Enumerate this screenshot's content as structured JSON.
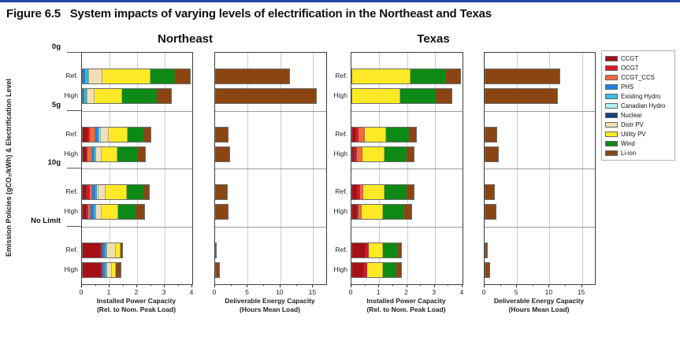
{
  "page": {
    "title": "Figure 6.5   System impacts of varying levels of electrification in the Northeast and Texas",
    "accent_rule_color": "#2646A8"
  },
  "figure": {
    "region_titles": [
      "Northeast",
      "Texas"
    ],
    "y_axis_label": "Emission Policies (gCO₂/kWh) & Electrification Level"
  },
  "legend": {
    "items": [
      "CCGT",
      "OCGT",
      "CCGT_CCS",
      "PHS",
      "Existing Hydro",
      "Canadian Hydro",
      "Nuclear",
      "Distr PV",
      "Utility PV",
      "Wind",
      "Li-ion"
    ]
  },
  "chart_data": {
    "type": "bar",
    "orientation": "horizontal-stacked",
    "grid": true,
    "legend_position": "upper-right-outside",
    "groups": [
      "0g",
      "5g",
      "10g",
      "No Limit"
    ],
    "rows": [
      "Ref.",
      "High"
    ],
    "stack_order": [
      "CCGT",
      "OCGT",
      "CCGT_CCS",
      "PHS",
      "Existing Hydro",
      "Canadian Hydro",
      "Nuclear",
      "Distr PV",
      "Utility PV",
      "Wind",
      "Li-ion"
    ],
    "colors": {
      "CCGT": "#A50F15",
      "OCGT": "#DC1428",
      "CCGT_CCS": "#F4683C",
      "PHS": "#2081E2",
      "Existing Hydro": "#33BEEB",
      "Canadian Hydro": "#ADF3F1",
      "Nuclear": "#14407D",
      "Distr PV": "#F2DEB2",
      "Utility PV": "#FFE926",
      "Wind": "#0C8A15",
      "Li-ion": "#8B4513"
    },
    "panels": [
      {
        "region": "Northeast",
        "xlabel": [
          "Installed Power Capacity",
          "(Rel. to Nom. Peak Load)"
        ],
        "xmax": 4,
        "xticks": [
          0,
          1,
          2,
          3,
          4
        ],
        "minor_step": 0.5,
        "show_row_labels": true,
        "bars": [
          [
            {
              "PHS": 0.1,
              "Existing Hydro": 0.1,
              "Canadian Hydro": 0.04,
              "Distr PV": 0.5,
              "Utility PV": 1.75,
              "Wind": 0.9,
              "Li-ion": 0.55
            },
            {
              "PHS": 0.07,
              "Existing Hydro": 0.08,
              "Canadian Hydro": 0.03,
              "Distr PV": 0.27,
              "Utility PV": 1.0,
              "Wind": 1.28,
              "Li-ion": 0.52
            }
          ],
          [
            {
              "CCGT": 0.2,
              "OCGT": 0.05,
              "CCGT_CCS": 0.22,
              "PHS": 0.08,
              "Existing Hydro": 0.07,
              "Canadian Hydro": 0.04,
              "Distr PV": 0.3,
              "Utility PV": 0.7,
              "Wind": 0.62,
              "Li-ion": 0.24
            },
            {
              "CCGT": 0.14,
              "OCGT": 0.05,
              "CCGT_CCS": 0.16,
              "PHS": 0.07,
              "Existing Hydro": 0.06,
              "Canadian Hydro": 0.03,
              "Distr PV": 0.18,
              "Utility PV": 0.6,
              "Wind": 0.75,
              "Li-ion": 0.28
            }
          ],
          [
            {
              "CCGT": 0.16,
              "OCGT": 0.1,
              "CCGT_CCS": 0.1,
              "PHS": 0.1,
              "Existing Hydro": 0.08,
              "Canadian Hydro": 0.04,
              "Distr PV": 0.28,
              "Utility PV": 0.78,
              "Wind": 0.64,
              "Li-ion": 0.18
            },
            {
              "CCGT": 0.14,
              "OCGT": 0.08,
              "CCGT_CCS": 0.08,
              "PHS": 0.1,
              "Existing Hydro": 0.08,
              "Canadian Hydro": 0.03,
              "Distr PV": 0.2,
              "Utility PV": 0.62,
              "Wind": 0.67,
              "Li-ion": 0.28
            }
          ],
          [
            {
              "CCGT": 0.67,
              "OCGT": 0.07,
              "PHS": 0.09,
              "Existing Hydro": 0.07,
              "Canadian Hydro": 0.03,
              "Distr PV": 0.31,
              "Utility PV": 0.19,
              "Li-ion": 0.05
            },
            {
              "CCGT": 0.71,
              "OCGT": 0.05,
              "PHS": 0.07,
              "Existing Hydro": 0.06,
              "Canadian Hydro": 0.02,
              "Distr PV": 0.2,
              "Utility PV": 0.13,
              "Li-ion": 0.19
            }
          ]
        ]
      },
      {
        "region": "Northeast",
        "xlabel": [
          "Deliverable Energy Capacity",
          "(Hours Mean Load)"
        ],
        "xmax": 17,
        "xticks": [
          0,
          5,
          10,
          15
        ],
        "minor_step": 2.5,
        "show_row_labels": false,
        "bars": [
          [
            {
              "Li-ion": 11.5
            },
            {
              "Li-ion": 15.5
            }
          ],
          [
            {
              "Li-ion": 2.1
            },
            {
              "Li-ion": 2.3
            }
          ],
          [
            {
              "Li-ion": 1.9
            },
            {
              "Li-ion": 2.1
            }
          ],
          [
            {
              "Li-ion": 0.15
            },
            {
              "Li-ion": 0.7
            }
          ]
        ]
      },
      {
        "region": "Texas",
        "xlabel": [
          "Installed Power Capacity",
          "(Rel. to Nom. Peak Load)"
        ],
        "xmax": 4,
        "xticks": [
          0,
          1,
          2,
          3,
          4
        ],
        "minor_step": 0.5,
        "show_row_labels": true,
        "bars": [
          [
            {
              "Utility PV": 2.14,
              "Wind": 1.29,
              "Li-ion": 0.52
            },
            {
              "Utility PV": 1.76,
              "Wind": 1.29,
              "Li-ion": 0.57
            }
          ],
          [
            {
              "CCGT": 0.14,
              "OCGT": 0.1,
              "CCGT_CCS": 0.22,
              "Utility PV": 0.78,
              "Wind": 0.84,
              "Li-ion": 0.28
            },
            {
              "CCGT": 0.1,
              "OCGT": 0.08,
              "CCGT_CCS": 0.21,
              "Utility PV": 0.81,
              "Wind": 0.81,
              "Li-ion": 0.27
            }
          ],
          [
            {
              "CCGT": 0.19,
              "OCGT": 0.1,
              "CCGT_CCS": 0.11,
              "Utility PV": 0.79,
              "Wind": 0.81,
              "Li-ion": 0.27
            },
            {
              "CCGT": 0.17,
              "OCGT": 0.07,
              "CCGT_CCS": 0.12,
              "Utility PV": 0.78,
              "Wind": 0.78,
              "Li-ion": 0.27
            }
          ],
          [
            {
              "CCGT": 0.5,
              "OCGT": 0.12,
              "Utility PV": 0.52,
              "Wind": 0.57,
              "Li-ion": 0.11
            },
            {
              "CCGT": 0.43,
              "OCGT": 0.12,
              "Utility PV": 0.59,
              "Wind": 0.5,
              "Li-ion": 0.17
            }
          ]
        ]
      },
      {
        "region": "Texas",
        "xlabel": [
          "Deliverable Energy Capacity",
          "(Hours Mean Load)"
        ],
        "xmax": 17,
        "xticks": [
          0,
          5,
          10,
          15
        ],
        "minor_step": 2.5,
        "show_row_labels": false,
        "bars": [
          [
            {
              "Li-ion": 11.7
            },
            {
              "Li-ion": 11.25
            }
          ],
          [
            {
              "Li-ion": 2.0
            },
            {
              "Li-ion": 2.15
            }
          ],
          [
            {
              "Li-ion": 1.6
            },
            {
              "Li-ion": 1.85
            }
          ],
          [
            {
              "Li-ion": 0.5
            },
            {
              "Li-ion": 0.9
            }
          ]
        ]
      }
    ]
  }
}
